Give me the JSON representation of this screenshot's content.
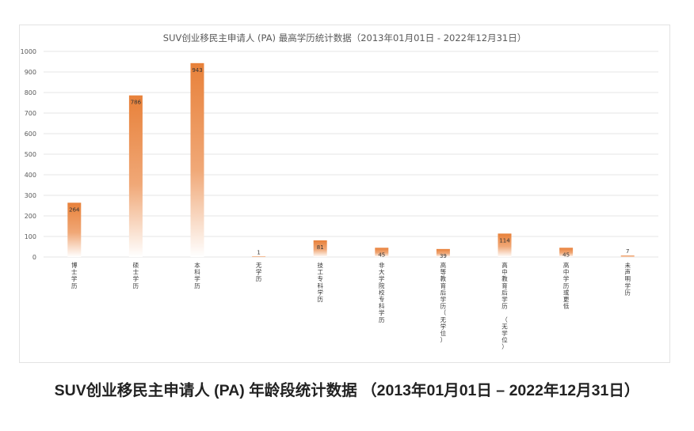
{
  "chart_data": {
    "type": "bar",
    "title": "SUV创业移民主申请人 (PA) 最高学历统计数据（2013年01月01日 - 2022年12月31日）",
    "categories": [
      "博士学历",
      "硕士学历",
      "本科学历",
      "无学历",
      "技工专科学历",
      "非大学院校专科学历",
      "高等教育后学历（无学位）",
      "高中教育后学历 （无学位）",
      "高中学历或更低",
      "未声明学历"
    ],
    "values": [
      264,
      786,
      943,
      1,
      81,
      45,
      39,
      114,
      45,
      7
    ],
    "ylim": [
      0,
      1000
    ],
    "yticks": [
      0,
      100,
      200,
      300,
      400,
      500,
      600,
      700,
      800,
      900,
      1000
    ],
    "grid": true,
    "legend": "none",
    "colors": {
      "bar_top": "#e8813a",
      "bar_bottom": "#ffffff",
      "grid": "#e6e6e6",
      "axis_text": "#595959"
    }
  },
  "caption": "SUV创业移民主申请人 (PA) 年龄段统计数据 （2013年01月01日 – 2022年12月31日）"
}
